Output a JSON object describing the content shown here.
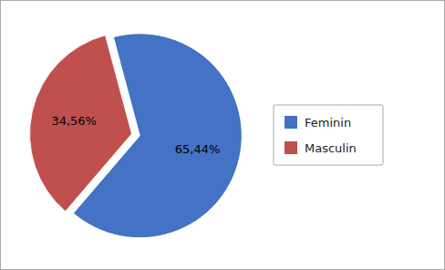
{
  "chart_data": {
    "type": "pie",
    "categories": [
      "Feminin",
      "Masculin"
    ],
    "values": [
      65.44,
      34.56
    ],
    "value_labels": [
      "65,44%",
      "34,56%"
    ],
    "colors": [
      "#4472c4",
      "#c0504d"
    ],
    "data_labels": true,
    "legend": "right"
  }
}
